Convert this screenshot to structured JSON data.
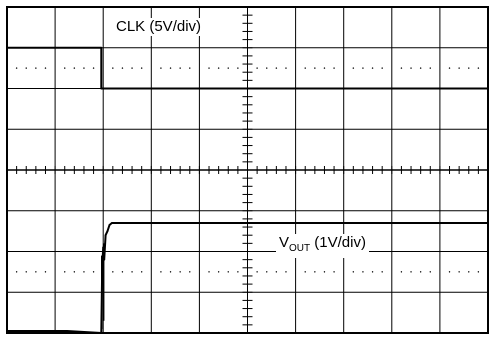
{
  "chart_data": {
    "type": "line",
    "title": "",
    "xlabel": "",
    "ylabel": "",
    "grid": true,
    "divisions": {
      "x": 10,
      "y": 8
    },
    "xlim": [
      0,
      10
    ],
    "ylim": [
      -4,
      4
    ],
    "series": [
      {
        "name": "CLK (5V/div)",
        "x": [
          0,
          1.96,
          1.96,
          10
        ],
        "y": [
          3.0,
          3.0,
          2.0,
          2.0
        ]
      },
      {
        "name": "VOUT (1V/div)",
        "x": [
          0,
          1.25,
          1.96,
          1.98,
          2.0,
          2.02,
          2.05,
          2.09,
          2.13,
          2.18,
          2.22,
          2.28,
          2.4,
          10
        ],
        "y": [
          -3.95,
          -3.95,
          -4.0,
          -2.4,
          -1.9,
          -2.2,
          -1.6,
          -1.5,
          -1.35,
          -1.3,
          -1.3,
          -1.3,
          -1.3,
          -1.3
        ]
      }
    ],
    "annotations": [
      {
        "label_prefix": "CLK (5V/div)"
      },
      {
        "label_main": "V",
        "label_sub": "OUT",
        "label_suffix": " (1V/div)"
      }
    ],
    "colors": {
      "trace": "#000000",
      "grid": "#000000",
      "background": "#ffffff"
    }
  }
}
